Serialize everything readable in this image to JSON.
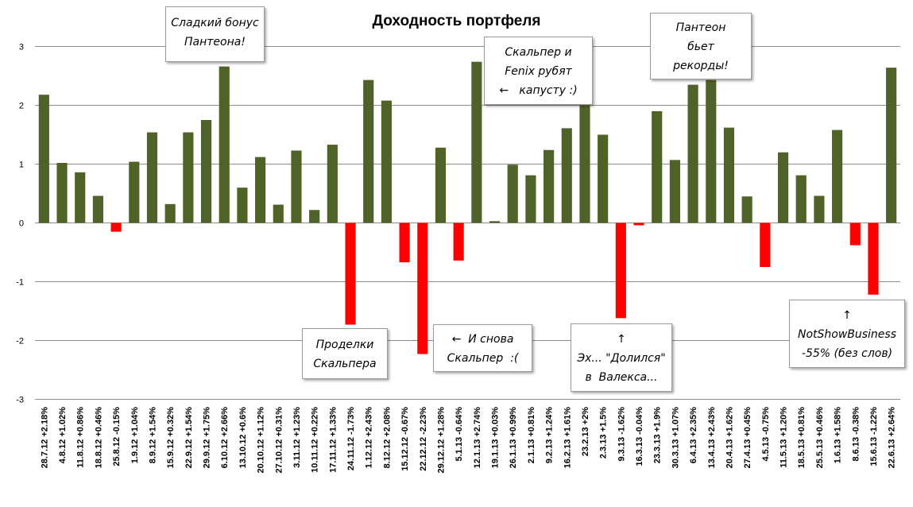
{
  "chart_data": {
    "type": "bar",
    "title": "Доходность портфеля",
    "ylim": [
      -3,
      3.3
    ],
    "yticks": [
      "3",
      "2",
      "1",
      "0",
      "-1",
      "-2",
      "-3"
    ],
    "grid": true,
    "legend": "none",
    "colors": {
      "positive": "#4f6228",
      "negative": "#ff0000",
      "grid": "#8c8c8c"
    },
    "categories": [
      "28.7.12",
      "4.8.12",
      "11.8.12",
      "18.8.12",
      "25.8.12",
      "1.9.12",
      "8.9.12",
      "15.9.12",
      "22.9.12",
      "29.9.12",
      "6.10.12",
      "13.10.12",
      "20.10.12",
      "27.10.12",
      "3.11.12",
      "10.11.12",
      "17.11.12",
      "24.11.12",
      "1.12.12",
      "8.12.12",
      "15.12.12",
      "22.12.12",
      "29.12.12",
      "5.1.13",
      "12.1.13",
      "19.1.13",
      "26.1.13",
      "2.1.13",
      "9.2.13",
      "16.2.13",
      "23.2.13",
      "2.3.13",
      "9.3.13",
      "16.3.13",
      "23.3.13",
      "30.3.13",
      "6.4.13",
      "13.4.13",
      "20.4.13",
      "27.4.13",
      "4.5.13",
      "11.5.13",
      "18.5.13",
      "25.5.13",
      "1.6.13",
      "8.6.13",
      "15.6.13",
      "22.6.13"
    ],
    "value_labels": [
      "+2.18%",
      "+1.02%",
      "+0.86%",
      "+0.46%",
      "-0.15%",
      "+1.04%",
      "+1.54%",
      "+0.32%",
      "+1.54%",
      "+1.75%",
      "+2.66%",
      "+0.6%",
      "+1.12%",
      "+0.31%",
      "+1.23%",
      "+0.22%",
      "+1.33%",
      "-1.73%",
      "+2.43%",
      "+2.08%",
      "-0.67%",
      "-2.23%",
      "+1.28%",
      "-0.64%",
      "+2.74%",
      "+0.03%",
      "+0.99%",
      "+0.81%",
      "+1.24%",
      "+1.61%",
      "+2%",
      "+1.5%",
      "-1.62%",
      "-0.04%",
      "+1.9%",
      "+1.07%",
      "+2.35%",
      "+2.43%",
      "+1.62%",
      "+0.45%",
      "-0.75%",
      "+1.20%",
      "+0.81%",
      "+0.46%",
      "+1.58%",
      "-0.38%",
      "-1.22%",
      "+2.64%"
    ],
    "values": [
      2.18,
      1.02,
      0.86,
      0.46,
      -0.15,
      1.04,
      1.54,
      0.32,
      1.54,
      1.75,
      2.66,
      0.6,
      1.12,
      0.31,
      1.23,
      0.22,
      1.33,
      -1.73,
      2.43,
      2.08,
      -0.67,
      -2.23,
      1.28,
      -0.64,
      2.74,
      0.03,
      0.99,
      0.81,
      1.24,
      1.61,
      2.0,
      1.5,
      -1.62,
      -0.04,
      1.9,
      1.07,
      2.35,
      2.43,
      1.62,
      0.45,
      -0.75,
      1.2,
      0.81,
      0.46,
      1.58,
      -0.38,
      -1.22,
      2.64
    ],
    "annotations": [
      {
        "id": "bonus",
        "lines": [
          "Сладкий бонус",
          "Пантеона!"
        ]
      },
      {
        "id": "scalper-fenix",
        "lines": [
          "Скальпер и",
          "Fenix рубят",
          "←   капусту :)"
        ]
      },
      {
        "id": "panteon-records",
        "lines": [
          "Пантеон",
          "бьет",
          "рекорды!"
        ]
      },
      {
        "id": "scalper-tricks",
        "lines": [
          "Проделки",
          "Скальпера"
        ]
      },
      {
        "id": "scalper-again",
        "lines": [
          "←  И снова",
          "Скальпер  :("
        ]
      },
      {
        "id": "dolilsya",
        "lines": [
          "↑",
          "Эх... \"Долился\"",
          "в  Валекса..."
        ]
      },
      {
        "id": "notshowbusiness",
        "lines": [
          "↑",
          "NotShowBusiness",
          "-55% (без слов)"
        ]
      }
    ]
  }
}
